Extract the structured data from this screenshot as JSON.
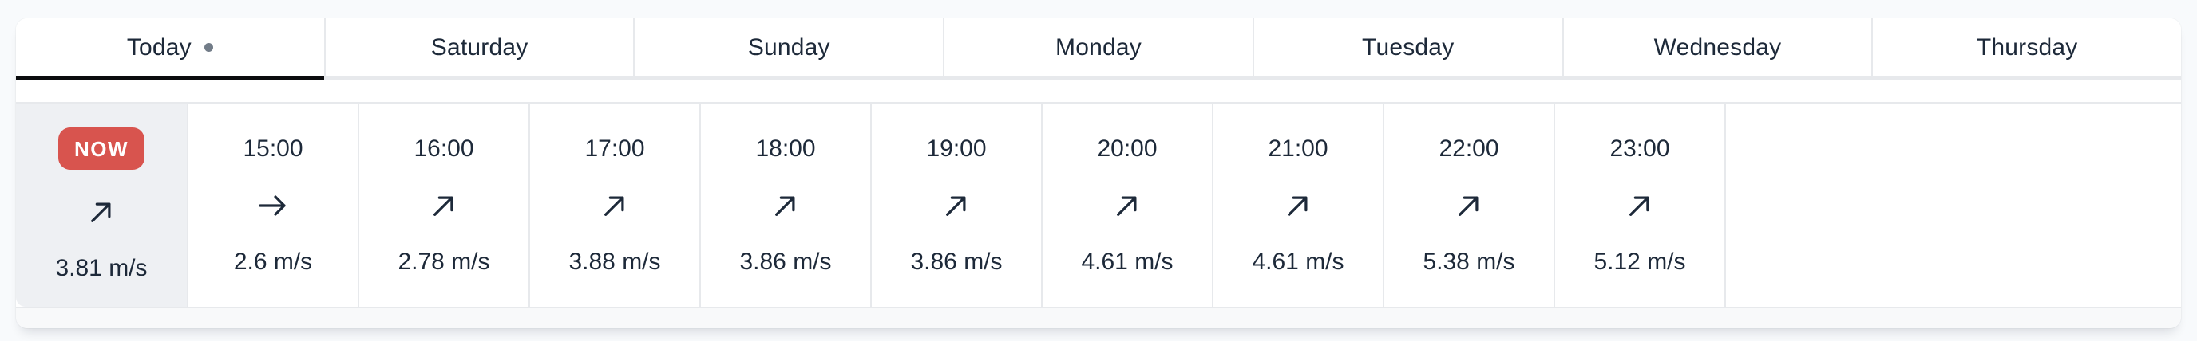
{
  "tabbar": {
    "tabs": [
      {
        "label": "Today",
        "active": true,
        "has_current_day_dot": true
      },
      {
        "label": "Saturday",
        "active": false,
        "has_current_day_dot": false
      },
      {
        "label": "Sunday",
        "active": false,
        "has_current_day_dot": false
      },
      {
        "label": "Monday",
        "active": false,
        "has_current_day_dot": false
      },
      {
        "label": "Tuesday",
        "active": false,
        "has_current_day_dot": false
      },
      {
        "label": "Wednesday",
        "active": false,
        "has_current_day_dot": false
      },
      {
        "label": "Thursday",
        "active": false,
        "has_current_day_dot": false
      }
    ]
  },
  "hourly": {
    "unit": "m/s",
    "cells": [
      {
        "badge": "NOW",
        "is_now": true,
        "time": "",
        "wind_direction": "NE",
        "wind_speed": "3.81 m/s"
      },
      {
        "is_now": false,
        "time": "15:00",
        "wind_direction": "E",
        "wind_speed": "2.6 m/s"
      },
      {
        "is_now": false,
        "time": "16:00",
        "wind_direction": "NE",
        "wind_speed": "2.78 m/s"
      },
      {
        "is_now": false,
        "time": "17:00",
        "wind_direction": "NE",
        "wind_speed": "3.88 m/s"
      },
      {
        "is_now": false,
        "time": "18:00",
        "wind_direction": "NE",
        "wind_speed": "3.86 m/s"
      },
      {
        "is_now": false,
        "time": "19:00",
        "wind_direction": "NE",
        "wind_speed": "3.86 m/s"
      },
      {
        "is_now": false,
        "time": "20:00",
        "wind_direction": "NE",
        "wind_speed": "4.61 m/s"
      },
      {
        "is_now": false,
        "time": "21:00",
        "wind_direction": "NE",
        "wind_speed": "4.61 m/s"
      },
      {
        "is_now": false,
        "time": "22:00",
        "wind_direction": "NE",
        "wind_speed": "5.38 m/s"
      },
      {
        "is_now": false,
        "time": "23:00",
        "wind_direction": "NE",
        "wind_speed": "5.12 m/s"
      }
    ]
  },
  "colors": {
    "page_bg": "#f8fafc",
    "text": "#1d2939",
    "border": "#e7e9ec",
    "active_tab_underline": "#0b0c0e",
    "now_badge_bg": "#d8544e",
    "now_cell_bg": "#eef0f3"
  }
}
